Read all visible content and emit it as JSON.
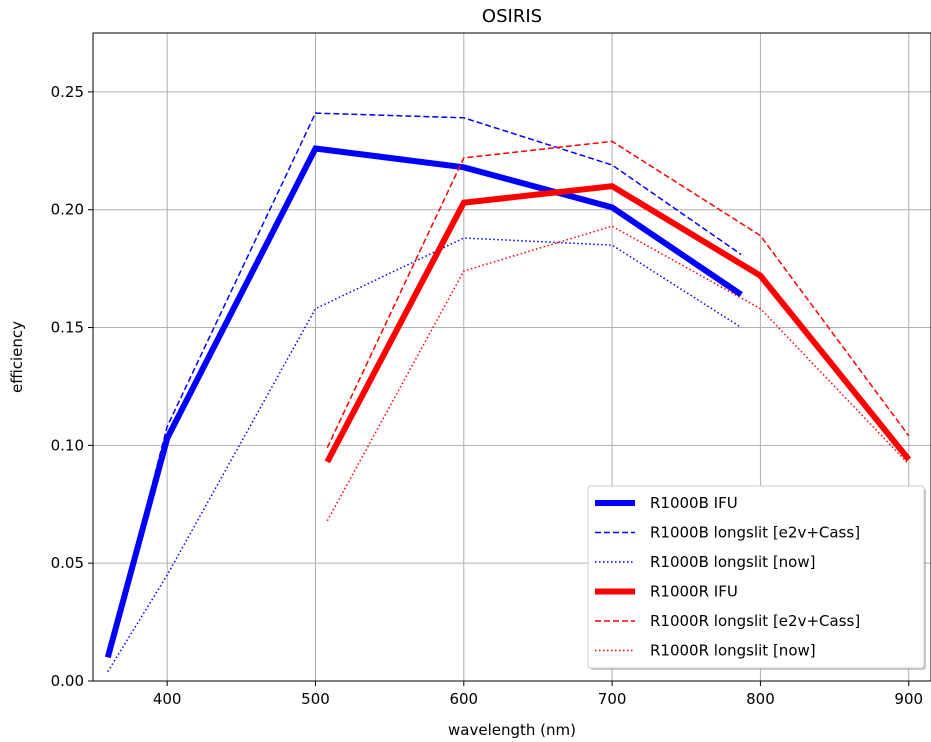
{
  "chart_data": {
    "type": "line",
    "title": "OSIRIS",
    "xlabel": "wavelength (nm)",
    "ylabel": "efficiency",
    "xlim": [
      350,
      915
    ],
    "ylim": [
      0,
      0.275
    ],
    "xticks": [
      400,
      500,
      600,
      700,
      800,
      900
    ],
    "yticks": [
      0.0,
      0.05,
      0.1,
      0.15,
      0.2,
      0.25
    ],
    "xtick_labels": [
      "400",
      "500",
      "600",
      "700",
      "800",
      "900"
    ],
    "ytick_labels": [
      "0.00",
      "0.05",
      "0.10",
      "0.15",
      "0.20",
      "0.25"
    ],
    "grid": true,
    "legend_position": "lower-right",
    "series": [
      {
        "name": "R1000B IFU",
        "color": "#0000ff",
        "style": "solid",
        "width": "thick",
        "x": [
          360,
          400,
          500,
          600,
          700,
          787
        ],
        "y": [
          0.01,
          0.103,
          0.226,
          0.218,
          0.201,
          0.164
        ]
      },
      {
        "name": "R1000B longslit [e2v+Cass]",
        "color": "#0000ff",
        "style": "dashed",
        "width": "thin",
        "x": [
          360,
          400,
          500,
          600,
          700,
          787
        ],
        "y": [
          0.01,
          0.108,
          0.241,
          0.239,
          0.219,
          0.181
        ]
      },
      {
        "name": "R1000B longslit [now]",
        "color": "#0000ff",
        "style": "dotted",
        "width": "thin",
        "x": [
          360,
          400,
          500,
          600,
          700,
          787
        ],
        "y": [
          0.004,
          0.045,
          0.158,
          0.188,
          0.185,
          0.15
        ]
      },
      {
        "name": "R1000R IFU",
        "color": "#ff0000",
        "style": "solid",
        "width": "thick",
        "x": [
          508,
          600,
          700,
          800,
          900
        ],
        "y": [
          0.093,
          0.203,
          0.21,
          0.172,
          0.094
        ]
      },
      {
        "name": "R1000R longslit [e2v+Cass]",
        "color": "#ff0000",
        "style": "dashed",
        "width": "thin",
        "x": [
          508,
          600,
          700,
          800,
          900
        ],
        "y": [
          0.099,
          0.222,
          0.229,
          0.189,
          0.104
        ]
      },
      {
        "name": "R1000R longslit [now]",
        "color": "#ff0000",
        "style": "dotted",
        "width": "thin",
        "x": [
          508,
          600,
          700,
          800,
          900
        ],
        "y": [
          0.068,
          0.174,
          0.193,
          0.158,
          0.092
        ]
      }
    ]
  }
}
